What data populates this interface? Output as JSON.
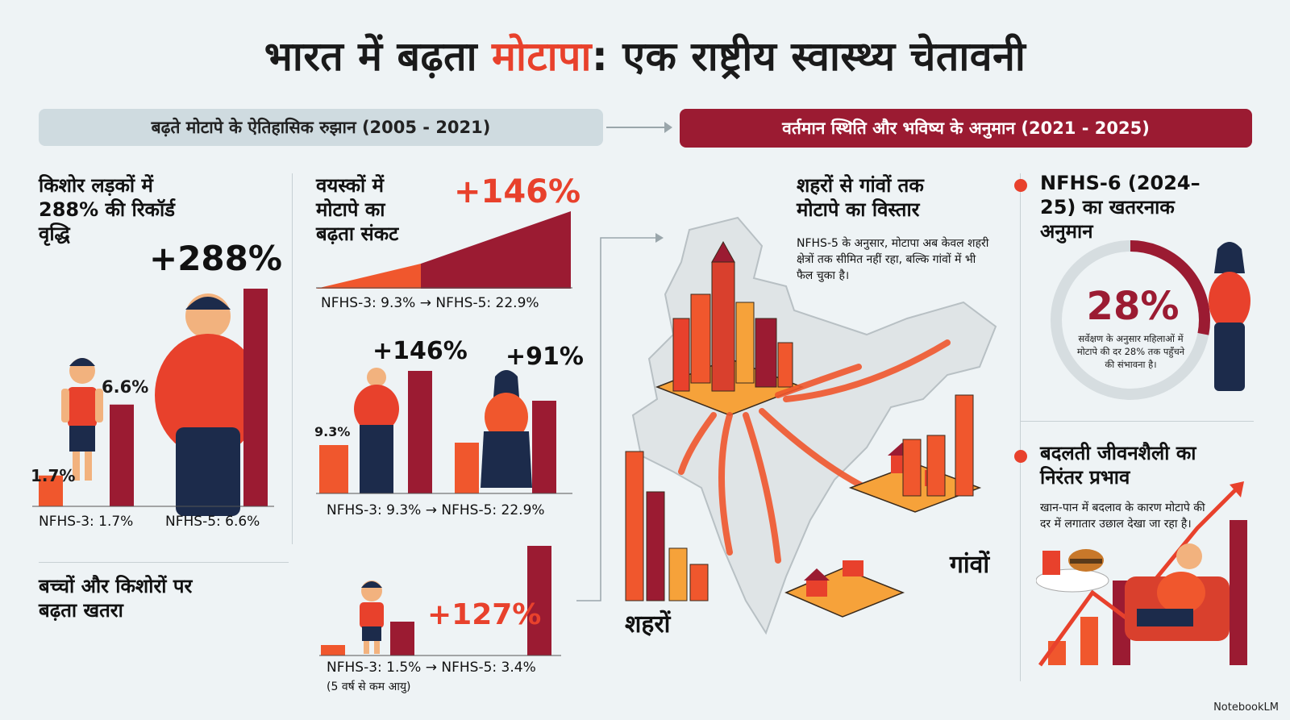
{
  "title": {
    "part1": "भारत में बढ़ता ",
    "highlight": "मोटापा",
    "part2": ": एक राष्ट्रीय स्वास्थ्य चेतावनी"
  },
  "sections": {
    "left_header": "बढ़ते मोटापे के ऐतिहासिक रुझान (2005 - 2021)",
    "right_header": "वर्तमान स्थिति और भविष्य के अनुमान (2021 - 2025)"
  },
  "teen": {
    "heading": "किशोर लड़कों में 288% की रिकॉर्ड वृद्धि",
    "increase": "+288%",
    "before_value": "1.7%",
    "after_value": "6.6%",
    "before_caption": "NFHS-3: 1.7%",
    "after_caption": "NFHS-5: 6.6%",
    "before_num": 1.7,
    "after_num": 6.6
  },
  "adults": {
    "heading": "वयस्कों में मोटापे का बढ़ता संकट",
    "increase": "+146%",
    "caption": "NFHS-3: 9.3% → NFHS-5: 22.9%"
  },
  "men_women": {
    "base_value": "9.3%",
    "men_increase": "+146%",
    "women_increase": "+91%",
    "caption": "NFHS-3: 9.3% → NFHS-5: 22.9%"
  },
  "children": {
    "heading": "बच्चों और किशोरों पर बढ़ता खतरा",
    "increase": "+127%",
    "caption": "NFHS-3: 1.5% → NFHS-5: 3.4%",
    "note": "(5 वर्ष से कम आयु)"
  },
  "spread": {
    "heading": "शहरों से गांवों तक मोटापे का विस्तार",
    "text": "NFHS-5 के अनुसार, मोटापा अब केवल शहरी क्षेत्रों तक सीमित नहीं रहा, बल्कि गांवों में भी फैल चुका है।",
    "cities_label": "शहरों",
    "villages_label": "गांवों"
  },
  "nfhs6": {
    "heading": "NFHS-6 (2024–25) का खतरनाक अनुमान",
    "value": "28%",
    "percent": 28,
    "text": "सर्वेक्षण के अनुसार महिलाओं में मोटापे की दर 28% तक पहुँचने की संभावना है।"
  },
  "lifestyle": {
    "heading": "बदलती जीवनशैली का निरंतर प्रभाव",
    "text": "खान-पान में बदलाव के कारण मोटापे की दर में लगातार उछाल देखा जा रहा है।"
  },
  "credit": "NotebookLM",
  "colors": {
    "accent": "#e8412c",
    "dark_red": "#9b1b32",
    "orange": "#f0572d"
  }
}
